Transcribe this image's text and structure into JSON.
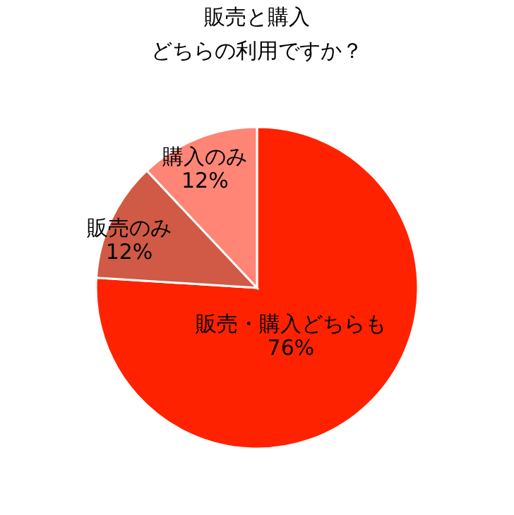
{
  "chart_data": {
    "type": "pie",
    "title": [
      "販売と購入",
      "どちらの利用ですか？"
    ],
    "categories": [
      "販売・購入どちらも",
      "販売のみ",
      "購入のみ"
    ],
    "values": [
      76,
      12,
      12
    ],
    "colors": [
      "#ff2200",
      "#d05a45",
      "#ff8577"
    ],
    "value_labels": [
      "76%",
      "12%",
      "12%"
    ]
  }
}
